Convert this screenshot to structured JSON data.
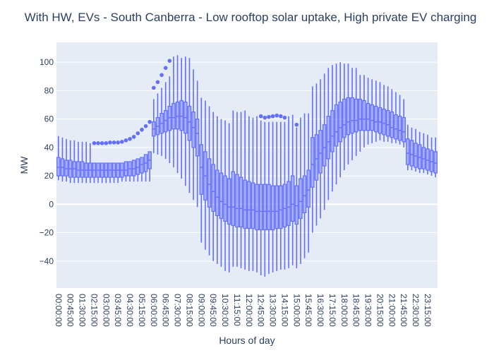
{
  "chart_data": {
    "type": "box",
    "title": "With HW, EVs - South Canberra - Low rooftop solar uptake, High private EV charging",
    "xlabel": "Hours of day",
    "ylabel": "MW",
    "ylim": [
      -59,
      114
    ],
    "y_ticks": [
      -40,
      -20,
      0,
      20,
      40,
      60,
      80,
      100
    ],
    "x_tick_labels": [
      "00:00:00",
      "00:45:00",
      "01:30:00",
      "02:15:00",
      "03:00:00",
      "03:45:00",
      "04:30:00",
      "05:15:00",
      "06:00:00",
      "06:45:00",
      "07:30:00",
      "08:15:00",
      "09:00:00",
      "09:45:00",
      "10:30:00",
      "11:15:00",
      "12:00:00",
      "12:45:00",
      "13:30:00",
      "14:15:00",
      "15:00:00",
      "15:45:00",
      "16:30:00",
      "17:15:00",
      "18:00:00",
      "18:45:00",
      "19:30:00",
      "20:15:00",
      "21:00:00",
      "21:45:00",
      "22:30:00",
      "23:15:00"
    ],
    "grid": true,
    "box_color": "#636efa",
    "boxes": [
      {
        "x": "00:00:00",
        "q1": 20,
        "median": 26,
        "q3": 33,
        "low": 17,
        "high": 48,
        "outliers": []
      },
      {
        "x": "00:15:00",
        "q1": 20,
        "median": 26,
        "q3": 32,
        "low": 16,
        "high": 47,
        "outliers": []
      },
      {
        "x": "00:30:00",
        "q1": 20,
        "median": 25,
        "q3": 31,
        "low": 16,
        "high": 46,
        "outliers": []
      },
      {
        "x": "00:45:00",
        "q1": 19,
        "median": 25,
        "q3": 31,
        "low": 15,
        "high": 45,
        "outliers": []
      },
      {
        "x": "01:00:00",
        "q1": 19,
        "median": 25,
        "q3": 30,
        "low": 15,
        "high": 45,
        "outliers": []
      },
      {
        "x": "01:15:00",
        "q1": 19,
        "median": 24,
        "q3": 30,
        "low": 15,
        "high": 44,
        "outliers": []
      },
      {
        "x": "01:30:00",
        "q1": 19,
        "median": 24,
        "q3": 30,
        "low": 15,
        "high": 44,
        "outliers": []
      },
      {
        "x": "01:45:00",
        "q1": 19,
        "median": 24,
        "q3": 29,
        "low": 15,
        "high": 44,
        "outliers": []
      },
      {
        "x": "02:00:00",
        "q1": 19,
        "median": 24,
        "q3": 29,
        "low": 15,
        "high": 43,
        "outliers": []
      },
      {
        "x": "02:15:00",
        "q1": 19,
        "median": 24,
        "q3": 29,
        "low": 15,
        "high": 29,
        "outliers": [
          43
        ]
      },
      {
        "x": "02:30:00",
        "q1": 19,
        "median": 24,
        "q3": 29,
        "low": 15,
        "high": 29,
        "outliers": [
          43
        ]
      },
      {
        "x": "02:45:00",
        "q1": 19,
        "median": 24,
        "q3": 29,
        "low": 15,
        "high": 29,
        "outliers": [
          43
        ]
      },
      {
        "x": "03:00:00",
        "q1": 19,
        "median": 24,
        "q3": 29,
        "low": 15,
        "high": 29,
        "outliers": [
          43
        ]
      },
      {
        "x": "03:15:00",
        "q1": 19,
        "median": 24,
        "q3": 29,
        "low": 15,
        "high": 29,
        "outliers": [
          43.5
        ]
      },
      {
        "x": "03:30:00",
        "q1": 19,
        "median": 24,
        "q3": 29,
        "low": 15,
        "high": 29,
        "outliers": [
          43.5
        ]
      },
      {
        "x": "03:45:00",
        "q1": 19,
        "median": 24,
        "q3": 29,
        "low": 15,
        "high": 29,
        "outliers": [
          43.5
        ]
      },
      {
        "x": "04:00:00",
        "q1": 19,
        "median": 24,
        "q3": 29,
        "low": 16,
        "high": 29,
        "outliers": [
          44
        ]
      },
      {
        "x": "04:15:00",
        "q1": 20,
        "median": 24,
        "q3": 30,
        "low": 16,
        "high": 30,
        "outliers": [
          45
        ]
      },
      {
        "x": "04:30:00",
        "q1": 20,
        "median": 25,
        "q3": 30,
        "low": 16,
        "high": 30,
        "outliers": [
          46
        ]
      },
      {
        "x": "04:45:00",
        "q1": 20,
        "median": 25,
        "q3": 31,
        "low": 16,
        "high": 31,
        "outliers": [
          47.5
        ]
      },
      {
        "x": "05:00:00",
        "q1": 21,
        "median": 26,
        "q3": 32,
        "low": 16,
        "high": 32,
        "outliers": [
          50
        ]
      },
      {
        "x": "05:15:00",
        "q1": 22,
        "median": 28,
        "q3": 33,
        "low": 16,
        "high": 33,
        "outliers": [
          52.5
        ]
      },
      {
        "x": "05:30:00",
        "q1": 23,
        "median": 29,
        "q3": 35,
        "low": 16,
        "high": 35,
        "outliers": [
          55
        ]
      },
      {
        "x": "05:45:00",
        "q1": 25,
        "median": 31,
        "q3": 37,
        "low": 16,
        "high": 37,
        "outliers": [
          58
        ]
      },
      {
        "x": "06:00:00",
        "q1": 48,
        "median": 53,
        "q3": 58,
        "low": 36,
        "high": 74,
        "outliers": [
          82
        ]
      },
      {
        "x": "06:15:00",
        "q1": 49,
        "median": 55,
        "q3": 61,
        "low": 35,
        "high": 78,
        "outliers": [
          86
        ]
      },
      {
        "x": "06:30:00",
        "q1": 50,
        "median": 57,
        "q3": 64,
        "low": 34,
        "high": 82,
        "outliers": [
          91
        ]
      },
      {
        "x": "06:45:00",
        "q1": 51,
        "median": 59,
        "q3": 66,
        "low": 32,
        "high": 86,
        "outliers": [
          96
        ]
      },
      {
        "x": "07:00:00",
        "q1": 52,
        "median": 61,
        "q3": 69,
        "low": 29,
        "high": 90,
        "outliers": [
          101
        ]
      },
      {
        "x": "07:15:00",
        "q1": 53,
        "median": 61,
        "q3": 71,
        "low": 26,
        "high": 104,
        "outliers": []
      },
      {
        "x": "07:30:00",
        "q1": 53,
        "median": 62,
        "q3": 72,
        "low": 22,
        "high": 105,
        "outliers": []
      },
      {
        "x": "07:45:00",
        "q1": 52,
        "median": 62,
        "q3": 73,
        "low": 18,
        "high": 103,
        "outliers": []
      },
      {
        "x": "08:00:00",
        "q1": 50,
        "median": 61,
        "q3": 72,
        "low": 13,
        "high": 104,
        "outliers": []
      },
      {
        "x": "08:15:00",
        "q1": 45,
        "median": 58,
        "q3": 69,
        "low": 8,
        "high": 103,
        "outliers": []
      },
      {
        "x": "08:30:00",
        "q1": 40,
        "median": 54,
        "q3": 65,
        "low": 3,
        "high": 95,
        "outliers": []
      },
      {
        "x": "08:45:00",
        "q1": 34,
        "median": 50,
        "q3": 60,
        "low": -2,
        "high": 87,
        "outliers": []
      },
      {
        "x": "09:00:00",
        "q1": 7,
        "median": 26,
        "q3": 42,
        "low": -27,
        "high": 75,
        "outliers": []
      },
      {
        "x": "09:15:00",
        "q1": 3,
        "median": 20,
        "q3": 37,
        "low": -32,
        "high": 73,
        "outliers": []
      },
      {
        "x": "09:30:00",
        "q1": -2,
        "median": 14,
        "q3": 32,
        "low": -36,
        "high": 69,
        "outliers": []
      },
      {
        "x": "09:45:00",
        "q1": -5,
        "median": 9,
        "q3": 28,
        "low": -40,
        "high": 65,
        "outliers": []
      },
      {
        "x": "10:00:00",
        "q1": -8,
        "median": 5,
        "q3": 24,
        "low": -42,
        "high": 62,
        "outliers": []
      },
      {
        "x": "10:15:00",
        "q1": -10,
        "median": 2,
        "q3": 22,
        "low": -44,
        "high": 60,
        "outliers": []
      },
      {
        "x": "10:30:00",
        "q1": -12,
        "median": 0,
        "q3": 20,
        "low": -47,
        "high": 59,
        "outliers": []
      },
      {
        "x": "10:45:00",
        "q1": -14,
        "median": -2,
        "q3": 18,
        "low": -48,
        "high": 57,
        "outliers": []
      },
      {
        "x": "11:00:00",
        "q1": -15,
        "median": -2,
        "q3": 23,
        "low": -44,
        "high": 66,
        "outliers": []
      },
      {
        "x": "11:15:00",
        "q1": -16,
        "median": -3,
        "q3": 21,
        "low": -44,
        "high": 65,
        "outliers": []
      },
      {
        "x": "11:30:00",
        "q1": -16,
        "median": -3,
        "q3": 19,
        "low": -45,
        "high": 65,
        "outliers": []
      },
      {
        "x": "11:45:00",
        "q1": -17,
        "median": -4,
        "q3": 17,
        "low": -46,
        "high": 66,
        "outliers": []
      },
      {
        "x": "12:00:00",
        "q1": -17,
        "median": -4,
        "q3": 16,
        "low": -47,
        "high": 62,
        "outliers": []
      },
      {
        "x": "12:15:00",
        "q1": -17,
        "median": -4,
        "q3": 15,
        "low": -47,
        "high": 61,
        "outliers": []
      },
      {
        "x": "12:30:00",
        "q1": -18,
        "median": -5,
        "q3": 14,
        "low": -48,
        "high": 62,
        "outliers": []
      },
      {
        "x": "12:45:00",
        "q1": -18,
        "median": -5,
        "q3": 14,
        "low": -50,
        "high": 59,
        "outliers": [
          62
        ]
      },
      {
        "x": "13:00:00",
        "q1": -18,
        "median": -5,
        "q3": 14,
        "low": -51,
        "high": 58,
        "outliers": [
          61
        ]
      },
      {
        "x": "13:15:00",
        "q1": -18,
        "median": -5,
        "q3": 14,
        "low": -49,
        "high": 58,
        "outliers": [
          61.5
        ]
      },
      {
        "x": "13:30:00",
        "q1": -18,
        "median": -5,
        "q3": 13,
        "low": -48,
        "high": 58,
        "outliers": [
          62
        ]
      },
      {
        "x": "13:45:00",
        "q1": -17,
        "median": -5,
        "q3": 13,
        "low": -47,
        "high": 58,
        "outliers": [
          62.5
        ]
      },
      {
        "x": "14:00:00",
        "q1": -17,
        "median": -4,
        "q3": 13,
        "low": -46,
        "high": 58,
        "outliers": [
          62
        ]
      },
      {
        "x": "14:15:00",
        "q1": -16,
        "median": -3,
        "q3": 14,
        "low": -46,
        "high": 58,
        "outliers": [
          61
        ]
      },
      {
        "x": "14:30:00",
        "q1": -15,
        "median": -2,
        "q3": 16,
        "low": -45,
        "high": 62,
        "outliers": []
      },
      {
        "x": "14:45:00",
        "q1": -12,
        "median": 0,
        "q3": 20,
        "low": -43,
        "high": 63,
        "outliers": []
      },
      {
        "x": "15:00:00",
        "q1": -14,
        "median": -1,
        "q3": 13,
        "low": -45,
        "high": 54,
        "outliers": [
          56
        ]
      },
      {
        "x": "15:15:00",
        "q1": -10,
        "median": 2,
        "q3": 18,
        "low": -42,
        "high": 61,
        "outliers": []
      },
      {
        "x": "15:30:00",
        "q1": -6,
        "median": 6,
        "q3": 20,
        "low": -38,
        "high": 64,
        "outliers": []
      },
      {
        "x": "15:45:00",
        "q1": -2,
        "median": 10,
        "q3": 24,
        "low": -34,
        "high": 64,
        "outliers": []
      },
      {
        "x": "16:00:00",
        "q1": 12,
        "median": 28,
        "q3": 47,
        "low": -20,
        "high": 83,
        "outliers": []
      },
      {
        "x": "16:15:00",
        "q1": 17,
        "median": 32,
        "q3": 49,
        "low": -15,
        "high": 85,
        "outliers": []
      },
      {
        "x": "16:30:00",
        "q1": 22,
        "median": 36,
        "q3": 52,
        "low": -10,
        "high": 88,
        "outliers": []
      },
      {
        "x": "16:45:00",
        "q1": 27,
        "median": 40,
        "q3": 56,
        "low": -4,
        "high": 92,
        "outliers": []
      },
      {
        "x": "17:00:00",
        "q1": 32,
        "median": 44,
        "q3": 62,
        "low": 3,
        "high": 96,
        "outliers": []
      },
      {
        "x": "17:15:00",
        "q1": 37,
        "median": 48,
        "q3": 66,
        "low": 9,
        "high": 98,
        "outliers": []
      },
      {
        "x": "17:30:00",
        "q1": 41,
        "median": 51,
        "q3": 70,
        "low": 14,
        "high": 99,
        "outliers": []
      },
      {
        "x": "17:45:00",
        "q1": 44,
        "median": 54,
        "q3": 72,
        "low": 19,
        "high": 100,
        "outliers": []
      },
      {
        "x": "18:00:00",
        "q1": 47,
        "median": 56,
        "q3": 74,
        "low": 24,
        "high": 99,
        "outliers": []
      },
      {
        "x": "18:15:00",
        "q1": 49,
        "median": 58,
        "q3": 75,
        "low": 28,
        "high": 99,
        "outliers": []
      },
      {
        "x": "18:30:00",
        "q1": 50,
        "median": 59,
        "q3": 75,
        "low": 31,
        "high": 96,
        "outliers": []
      },
      {
        "x": "18:45:00",
        "q1": 51,
        "median": 59,
        "q3": 74,
        "low": 34,
        "high": 96,
        "outliers": []
      },
      {
        "x": "19:00:00",
        "q1": 52,
        "median": 60,
        "q3": 74,
        "low": 37,
        "high": 91,
        "outliers": []
      },
      {
        "x": "19:15:00",
        "q1": 52,
        "median": 60,
        "q3": 73,
        "low": 40,
        "high": 91,
        "outliers": []
      },
      {
        "x": "19:30:00",
        "q1": 52,
        "median": 60,
        "q3": 71,
        "low": 42,
        "high": 89,
        "outliers": []
      },
      {
        "x": "19:45:00",
        "q1": 52,
        "median": 59,
        "q3": 70,
        "low": 43,
        "high": 88,
        "outliers": []
      },
      {
        "x": "20:00:00",
        "q1": 51,
        "median": 58,
        "q3": 69,
        "low": 44,
        "high": 87,
        "outliers": []
      },
      {
        "x": "20:15:00",
        "q1": 50,
        "median": 58,
        "q3": 68,
        "low": 45,
        "high": 86,
        "outliers": []
      },
      {
        "x": "20:30:00",
        "q1": 49,
        "median": 57,
        "q3": 67,
        "low": 44,
        "high": 84,
        "outliers": []
      },
      {
        "x": "20:45:00",
        "q1": 48,
        "median": 56,
        "q3": 66,
        "low": 44,
        "high": 83,
        "outliers": []
      },
      {
        "x": "21:00:00",
        "q1": 47,
        "median": 54,
        "q3": 65,
        "low": 43,
        "high": 81,
        "outliers": []
      },
      {
        "x": "21:15:00",
        "q1": 46,
        "median": 53,
        "q3": 63,
        "low": 43,
        "high": 79,
        "outliers": []
      },
      {
        "x": "21:30:00",
        "q1": 45,
        "median": 52,
        "q3": 62,
        "low": 42,
        "high": 77,
        "outliers": []
      },
      {
        "x": "21:45:00",
        "q1": 44,
        "median": 51,
        "q3": 61,
        "low": 40,
        "high": 74,
        "outliers": []
      },
      {
        "x": "22:00:00",
        "q1": 28,
        "median": 36,
        "q3": 46,
        "low": 24,
        "high": 56,
        "outliers": []
      },
      {
        "x": "22:15:00",
        "q1": 27,
        "median": 35,
        "q3": 45,
        "low": 24,
        "high": 54,
        "outliers": []
      },
      {
        "x": "22:30:00",
        "q1": 26,
        "median": 34,
        "q3": 43,
        "low": 23,
        "high": 53,
        "outliers": []
      },
      {
        "x": "22:45:00",
        "q1": 25,
        "median": 33,
        "q3": 42,
        "low": 22,
        "high": 51,
        "outliers": []
      },
      {
        "x": "23:00:00",
        "q1": 25,
        "median": 32,
        "q3": 40,
        "low": 22,
        "high": 50,
        "outliers": []
      },
      {
        "x": "23:15:00",
        "q1": 24,
        "median": 31,
        "q3": 39,
        "low": 21,
        "high": 49,
        "outliers": []
      },
      {
        "x": "23:30:00",
        "q1": 23,
        "median": 30,
        "q3": 38,
        "low": 20,
        "high": 47,
        "outliers": []
      },
      {
        "x": "23:45:00",
        "q1": 22,
        "median": 29,
        "q3": 37,
        "low": 19,
        "high": 47,
        "outliers": []
      }
    ]
  }
}
